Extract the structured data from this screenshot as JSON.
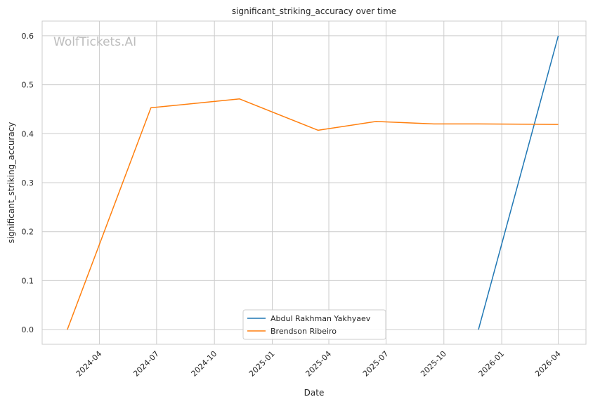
{
  "chart_data": {
    "type": "line",
    "title": "significant_striking_accuracy over time",
    "xlabel": "Date",
    "ylabel": "significant_striking_accuracy",
    "watermark": "WolfTickets.AI",
    "x_ticks": [
      "2024-04",
      "2024-07",
      "2024-10",
      "2025-01",
      "2025-04",
      "2025-07",
      "2025-10",
      "2026-01",
      "2026-04"
    ],
    "y_ticks": [
      "0.0",
      "0.1",
      "0.2",
      "0.3",
      "0.4",
      "0.5",
      "0.6"
    ],
    "xlim": [
      "2024-01-01",
      "2026-05-15"
    ],
    "ylim": [
      -0.03,
      0.63
    ],
    "grid": true,
    "legend_position": "lower center",
    "series": [
      {
        "name": "Abdul Rakhman Yakhyaev",
        "color": "#1f77b4",
        "points": [
          {
            "x": "2025-11-25",
            "y": 0.0
          },
          {
            "x": "2026-04-01",
            "y": 0.6
          }
        ]
      },
      {
        "name": "Brendson Ribeiro",
        "color": "#ff7f0e",
        "points": [
          {
            "x": "2024-02-10",
            "y": 0.0
          },
          {
            "x": "2024-06-22",
            "y": 0.453
          },
          {
            "x": "2024-11-10",
            "y": 0.471
          },
          {
            "x": "2025-03-15",
            "y": 0.407
          },
          {
            "x": "2025-06-15",
            "y": 0.425
          },
          {
            "x": "2025-09-15",
            "y": 0.42
          },
          {
            "x": "2025-11-25",
            "y": 0.42
          },
          {
            "x": "2026-04-01",
            "y": 0.419
          }
        ]
      }
    ]
  }
}
